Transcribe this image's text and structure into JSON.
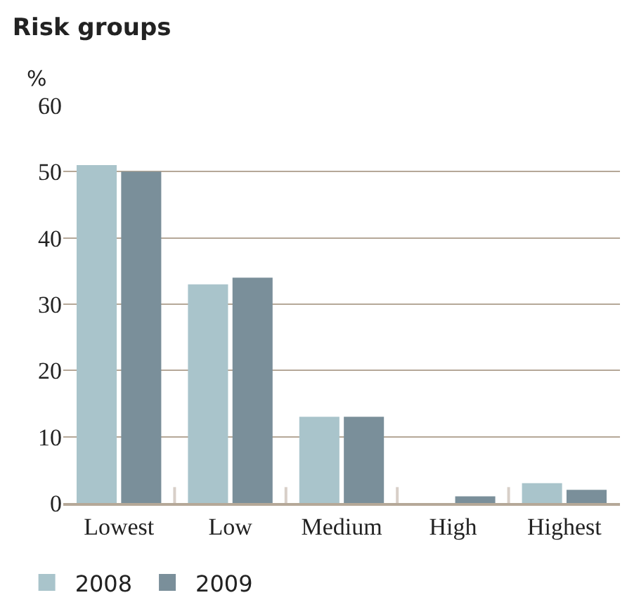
{
  "chart_data": {
    "type": "bar",
    "title": "Risk groups",
    "ylabel": "%",
    "categories": [
      "Lowest",
      "Low",
      "Medium",
      "High",
      "Highest"
    ],
    "series": [
      {
        "name": "2008",
        "color": "#a9c4cb",
        "values": [
          51,
          33,
          13,
          0,
          3
        ]
      },
      {
        "name": "2009",
        "color": "#7a8f9a",
        "values": [
          50,
          34,
          13,
          1,
          2
        ]
      }
    ],
    "ylim": [
      0,
      60
    ],
    "yticks": [
      0,
      10,
      20,
      30,
      40,
      50,
      60
    ],
    "grid": "y",
    "legend": "bottom left"
  }
}
